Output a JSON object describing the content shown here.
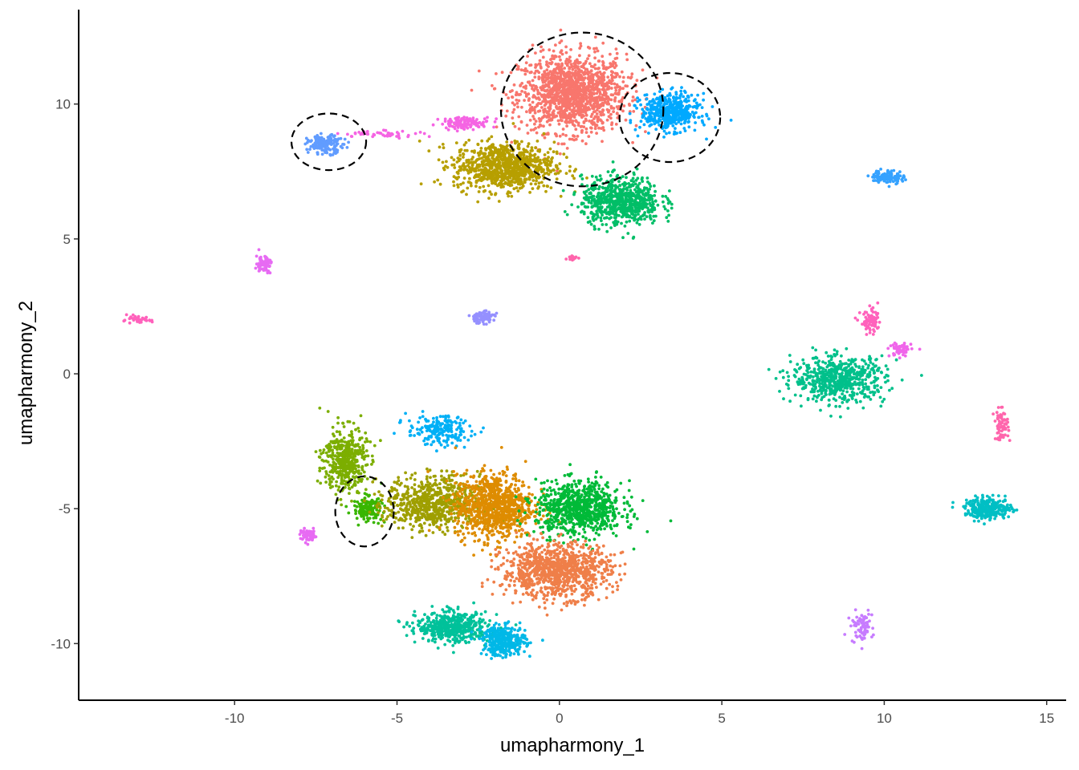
{
  "chart_data": {
    "type": "scatter",
    "title": "",
    "xlabel": "umapharmony_1",
    "ylabel": "umapharmony_2",
    "xlim": [
      -14.8,
      15.6
    ],
    "ylim": [
      -12.1,
      13.5
    ],
    "xticks": [
      -10,
      -5,
      0,
      5,
      10,
      15
    ],
    "yticks": [
      -10,
      -5,
      0,
      5,
      10
    ],
    "xtick_labels": [
      "-10",
      "-5",
      "0",
      "5",
      "10",
      "15"
    ],
    "ytick_labels": [
      "-10",
      "-5",
      "0",
      "5",
      "10"
    ],
    "grid": false,
    "legend": "none",
    "point_style": "dense small dots forming clusters",
    "clusters": [
      {
        "center": [
          0.4,
          10.4
        ],
        "spread": [
          1.5,
          1.3
        ],
        "color": "#F8766D",
        "approx_points": 1400
      },
      {
        "center": [
          -1.7,
          7.7
        ],
        "spread": [
          1.4,
          0.8
        ],
        "color": "#B79F00",
        "approx_points": 900
      },
      {
        "center": [
          1.9,
          6.4
        ],
        "spread": [
          1.1,
          0.8
        ],
        "color": "#00BE67",
        "approx_points": 700
      },
      {
        "center": [
          3.4,
          9.7
        ],
        "spread": [
          0.8,
          0.6
        ],
        "color": "#00A9FF",
        "approx_points": 500
      },
      {
        "center": [
          -7.2,
          8.5
        ],
        "spread": [
          0.5,
          0.3
        ],
        "color": "#619CFF",
        "approx_points": 160
      },
      {
        "center": [
          -2.9,
          9.3
        ],
        "spread": [
          0.7,
          0.2
        ],
        "color": "#F564E3",
        "approx_points": 120
      },
      {
        "center": [
          -5.4,
          8.9
        ],
        "spread": [
          1.2,
          0.12
        ],
        "color": "#F564E3",
        "approx_points": 50
      },
      {
        "center": [
          10.1,
          7.3
        ],
        "spread": [
          0.45,
          0.22
        ],
        "color": "#35A2FF",
        "approx_points": 110
      },
      {
        "center": [
          0.4,
          4.3
        ],
        "spread": [
          0.15,
          0.1
        ],
        "color": "#FF65AC",
        "approx_points": 15
      },
      {
        "center": [
          -9.1,
          4.1
        ],
        "spread": [
          0.22,
          0.3
        ],
        "color": "#E76BF3",
        "approx_points": 70
      },
      {
        "center": [
          -2.4,
          2.1
        ],
        "spread": [
          0.35,
          0.2
        ],
        "color": "#9590FF",
        "approx_points": 90
      },
      {
        "center": [
          -13.0,
          2.0
        ],
        "spread": [
          0.4,
          0.12
        ],
        "color": "#FF62BC",
        "approx_points": 45
      },
      {
        "center": [
          8.6,
          -0.2
        ],
        "spread": [
          1.3,
          0.75
        ],
        "color": "#00C08B",
        "approx_points": 600
      },
      {
        "center": [
          9.6,
          1.9
        ],
        "spread": [
          0.3,
          0.4
        ],
        "color": "#FF62BC",
        "approx_points": 80
      },
      {
        "center": [
          10.5,
          0.9
        ],
        "spread": [
          0.3,
          0.25
        ],
        "color": "#F066EA",
        "approx_points": 70
      },
      {
        "center": [
          13.6,
          -1.9
        ],
        "spread": [
          0.2,
          0.5
        ],
        "color": "#FF65AC",
        "approx_points": 70
      },
      {
        "center": [
          13.2,
          -5.0
        ],
        "spread": [
          0.65,
          0.35
        ],
        "color": "#00BFC4",
        "approx_points": 300
      },
      {
        "center": [
          9.3,
          -9.4
        ],
        "spread": [
          0.3,
          0.5
        ],
        "color": "#C77CFF",
        "approx_points": 80
      },
      {
        "center": [
          -6.6,
          -3.2
        ],
        "spread": [
          0.6,
          1.1
        ],
        "color": "#7CAE00",
        "approx_points": 450
      },
      {
        "center": [
          -5.9,
          -5.0
        ],
        "spread": [
          0.4,
          0.4
        ],
        "color": "#39B600",
        "approx_points": 150
      },
      {
        "center": [
          -3.7,
          -2.1
        ],
        "spread": [
          0.9,
          0.5
        ],
        "color": "#00B0F6",
        "approx_points": 200
      },
      {
        "center": [
          -3.9,
          -4.8
        ],
        "spread": [
          1.3,
          0.9
        ],
        "color": "#9F9F00",
        "approx_points": 700
      },
      {
        "center": [
          -2.0,
          -4.9
        ],
        "spread": [
          1.1,
          1.1
        ],
        "color": "#DE8C00",
        "approx_points": 900
      },
      {
        "center": [
          0.6,
          -5.0
        ],
        "spread": [
          1.2,
          0.9
        ],
        "color": "#00BA38",
        "approx_points": 800
      },
      {
        "center": [
          -0.1,
          -7.3
        ],
        "spread": [
          1.5,
          0.9
        ],
        "color": "#EF7F49",
        "approx_points": 1000
      },
      {
        "center": [
          -3.3,
          -9.4
        ],
        "spread": [
          1.0,
          0.5
        ],
        "color": "#00C19A",
        "approx_points": 500
      },
      {
        "center": [
          -1.7,
          -9.9
        ],
        "spread": [
          0.6,
          0.5
        ],
        "color": "#00B8E7",
        "approx_points": 350
      },
      {
        "center": [
          -7.7,
          -6.0
        ],
        "spread": [
          0.25,
          0.2
        ],
        "color": "#E76BF3",
        "approx_points": 70
      }
    ],
    "annotations": [
      {
        "type": "dashed-ellipse",
        "center": [
          0.7,
          9.8
        ],
        "radii": [
          2.5,
          2.85
        ]
      },
      {
        "type": "dashed-ellipse",
        "center": [
          3.4,
          9.5
        ],
        "radii": [
          1.55,
          1.65
        ]
      },
      {
        "type": "dashed-ellipse",
        "center": [
          -7.1,
          8.6
        ],
        "radii": [
          1.15,
          1.05
        ]
      },
      {
        "type": "dashed-ellipse",
        "center": [
          -6.0,
          -5.1
        ],
        "radii": [
          0.9,
          1.3
        ]
      }
    ]
  }
}
